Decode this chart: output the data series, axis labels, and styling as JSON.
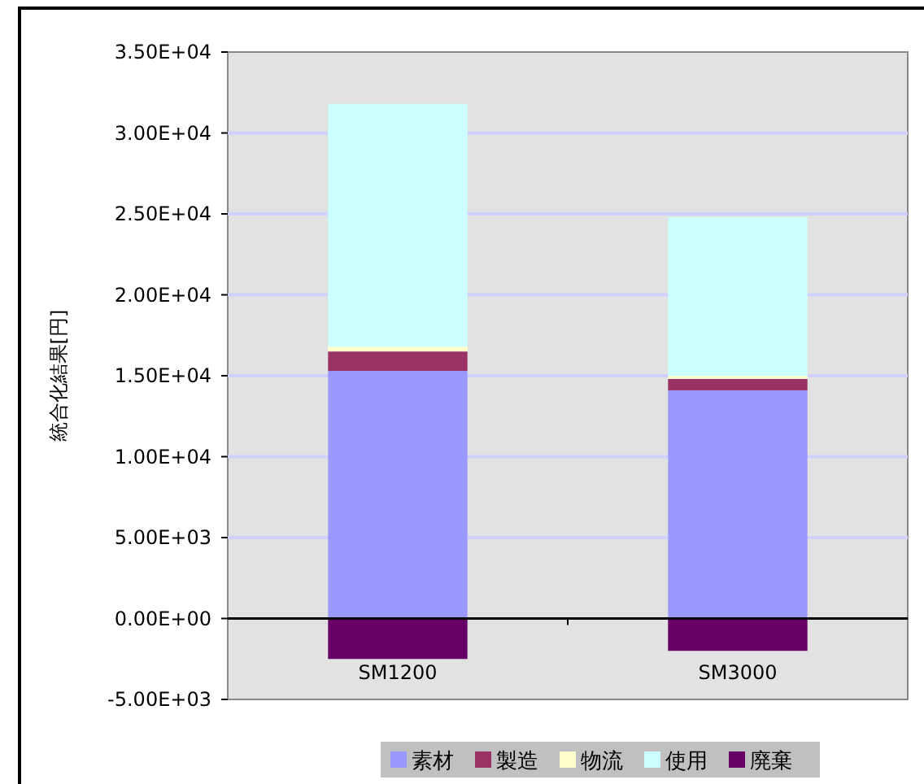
{
  "chart_data": {
    "type": "bar",
    "stacked": true,
    "ylabel": "統合化結果[円]",
    "categories": [
      "SM1200",
      "SM3000"
    ],
    "series": [
      {
        "name": "素材",
        "color": "#9999ff",
        "values": [
          15300,
          14100
        ]
      },
      {
        "name": "製造",
        "color": "#993366",
        "values": [
          1200,
          700
        ]
      },
      {
        "name": "物流",
        "color": "#ffffcc",
        "values": [
          300,
          200
        ]
      },
      {
        "name": "使用",
        "color": "#ccffff",
        "values": [
          15000,
          9800
        ]
      },
      {
        "name": "廃棄",
        "color": "#660066",
        "values": [
          -2500,
          -2000
        ]
      }
    ],
    "ylim": [
      -5000,
      35000
    ],
    "yticks": [
      {
        "value": -5000,
        "label": "-5.00E+03"
      },
      {
        "value": 0,
        "label": "0.00E+00"
      },
      {
        "value": 5000,
        "label": "5.00E+03"
      },
      {
        "value": 10000,
        "label": "1.00E+04"
      },
      {
        "value": 15000,
        "label": "1.50E+04"
      },
      {
        "value": 20000,
        "label": "2.00E+04"
      },
      {
        "value": 25000,
        "label": "2.50E+04"
      },
      {
        "value": 30000,
        "label": "3.00E+04"
      },
      {
        "value": 35000,
        "label": "3.50E+04"
      }
    ],
    "grid": "y",
    "legend": "bottom"
  }
}
